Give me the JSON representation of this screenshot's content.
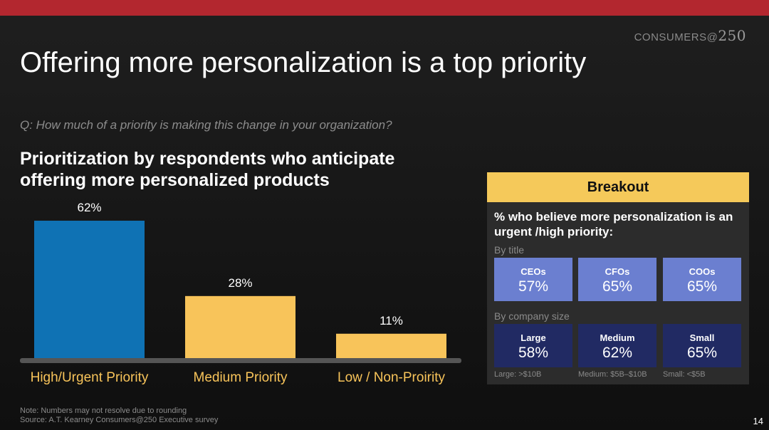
{
  "header": {
    "brand_text": "CONSUMERS",
    "brand_at": "@",
    "brand_number": "250",
    "title": "Offering more personalization is a top priority",
    "question": "Q: How much of a priority is making this change in your organization?",
    "chart_title": "Prioritization by respondents who anticipate offering more personalized products"
  },
  "chart_data": {
    "type": "bar",
    "categories": [
      "High/Urgent Priority",
      "Medium Priority",
      "Low / Non-Proirity"
    ],
    "values": [
      62,
      28,
      11
    ],
    "value_labels": [
      "62%",
      "28%",
      "11%"
    ],
    "bar_colors": [
      "#0f72b4",
      "#f8c45a",
      "#f8c45a"
    ],
    "ylim": [
      0,
      62
    ],
    "grid": false,
    "title": "Prioritization by respondents who anticipate offering more personalized products"
  },
  "breakout": {
    "header": "Breakout",
    "question": "% who believe more personalization is an urgent /high priority:",
    "by_title_label": "By title",
    "by_title": [
      {
        "label": "CEOs",
        "value": "57%"
      },
      {
        "label": "CFOs",
        "value": "65%"
      },
      {
        "label": "COOs",
        "value": "65%"
      }
    ],
    "by_size_label": "By company size",
    "by_size": [
      {
        "label": "Large",
        "value": "58%"
      },
      {
        "label": "Medium",
        "value": "62%"
      },
      {
        "label": "Small",
        "value": "65%"
      }
    ],
    "size_notes": [
      "Large: >$10B",
      "Medium: $5B–$10B",
      "Small: <$5B"
    ],
    "title_tile_color": "#6b7fd0",
    "size_tile_color": "#212a63",
    "header_color": "#f5c95a"
  },
  "footer": {
    "note": "Note: Numbers may not resolve due to rounding",
    "source": "Source: A.T. Kearney Consumers@250 Executive survey",
    "page_number": "14"
  },
  "colors": {
    "top_bar": "#b3272f",
    "category_label": "#f8c45a",
    "baseline": "#555555"
  }
}
